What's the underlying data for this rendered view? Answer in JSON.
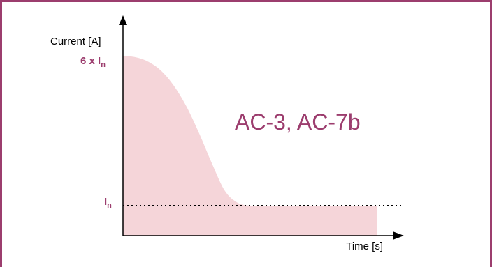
{
  "chart_data": {
    "type": "area",
    "title": "",
    "ylabel": "Current [A]",
    "xlabel": "Time [s]",
    "annotation": "AC-3, AC-7b",
    "y_ticks": {
      "peak": {
        "main": "6 x I",
        "sub": "n"
      },
      "rated": {
        "main": "I",
        "sub": "n"
      }
    },
    "x": [
      0,
      0.05,
      0.1,
      0.15,
      0.2,
      0.25,
      0.3,
      0.35,
      0.4,
      0.45,
      0.5,
      0.55,
      1.0
    ],
    "y": [
      6.0,
      5.95,
      5.8,
      5.5,
      5.0,
      4.3,
      3.4,
      2.4,
      1.5,
      1.1,
      1.0,
      1.0,
      1.0
    ],
    "reference_line": {
      "y": 1,
      "style": "dotted"
    },
    "colors": {
      "fill": "#f5d5d9",
      "accent": "#9c3d6e",
      "axis": "#000000"
    }
  }
}
